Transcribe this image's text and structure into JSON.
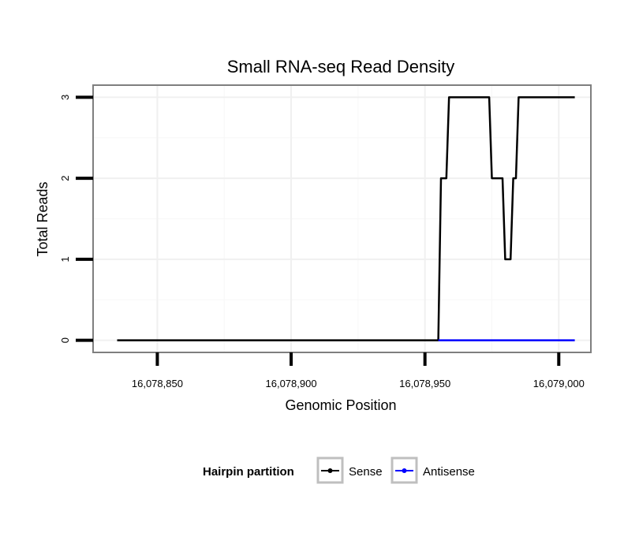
{
  "chart_data": {
    "type": "line",
    "title": "Small RNA-seq Read Density",
    "xlabel": "Genomic Position",
    "ylabel": "Total Reads",
    "xlim": [
      16078826,
      16079012
    ],
    "ylim": [
      -0.15,
      3.15
    ],
    "x_ticks": [
      16078850,
      16078900,
      16078950,
      16079000
    ],
    "x_tick_labels": [
      "16,078,850",
      "16,078,900",
      "16,078,950",
      "16,079,000"
    ],
    "y_ticks": [
      0,
      1,
      2,
      3
    ],
    "y_tick_labels": [
      "0",
      "1",
      "2",
      "3"
    ],
    "grid": true,
    "legend": {
      "title": "Hairpin partition",
      "position": "bottom"
    },
    "series": [
      {
        "name": "Sense",
        "color": "#000000",
        "x": [
          16078835,
          16078955,
          16078956,
          16078957,
          16078958,
          16078959,
          16078960,
          16078974,
          16078975,
          16078979,
          16078980,
          16078982,
          16078983,
          16078984,
          16078985,
          16079006
        ],
        "y": [
          0,
          0,
          2,
          2,
          2,
          3,
          3,
          3,
          2,
          2,
          1,
          1,
          2,
          2,
          3,
          3
        ]
      },
      {
        "name": "Antisense",
        "color": "#0000ff",
        "x": [
          16078955,
          16079006
        ],
        "y": [
          0,
          0
        ]
      }
    ]
  }
}
